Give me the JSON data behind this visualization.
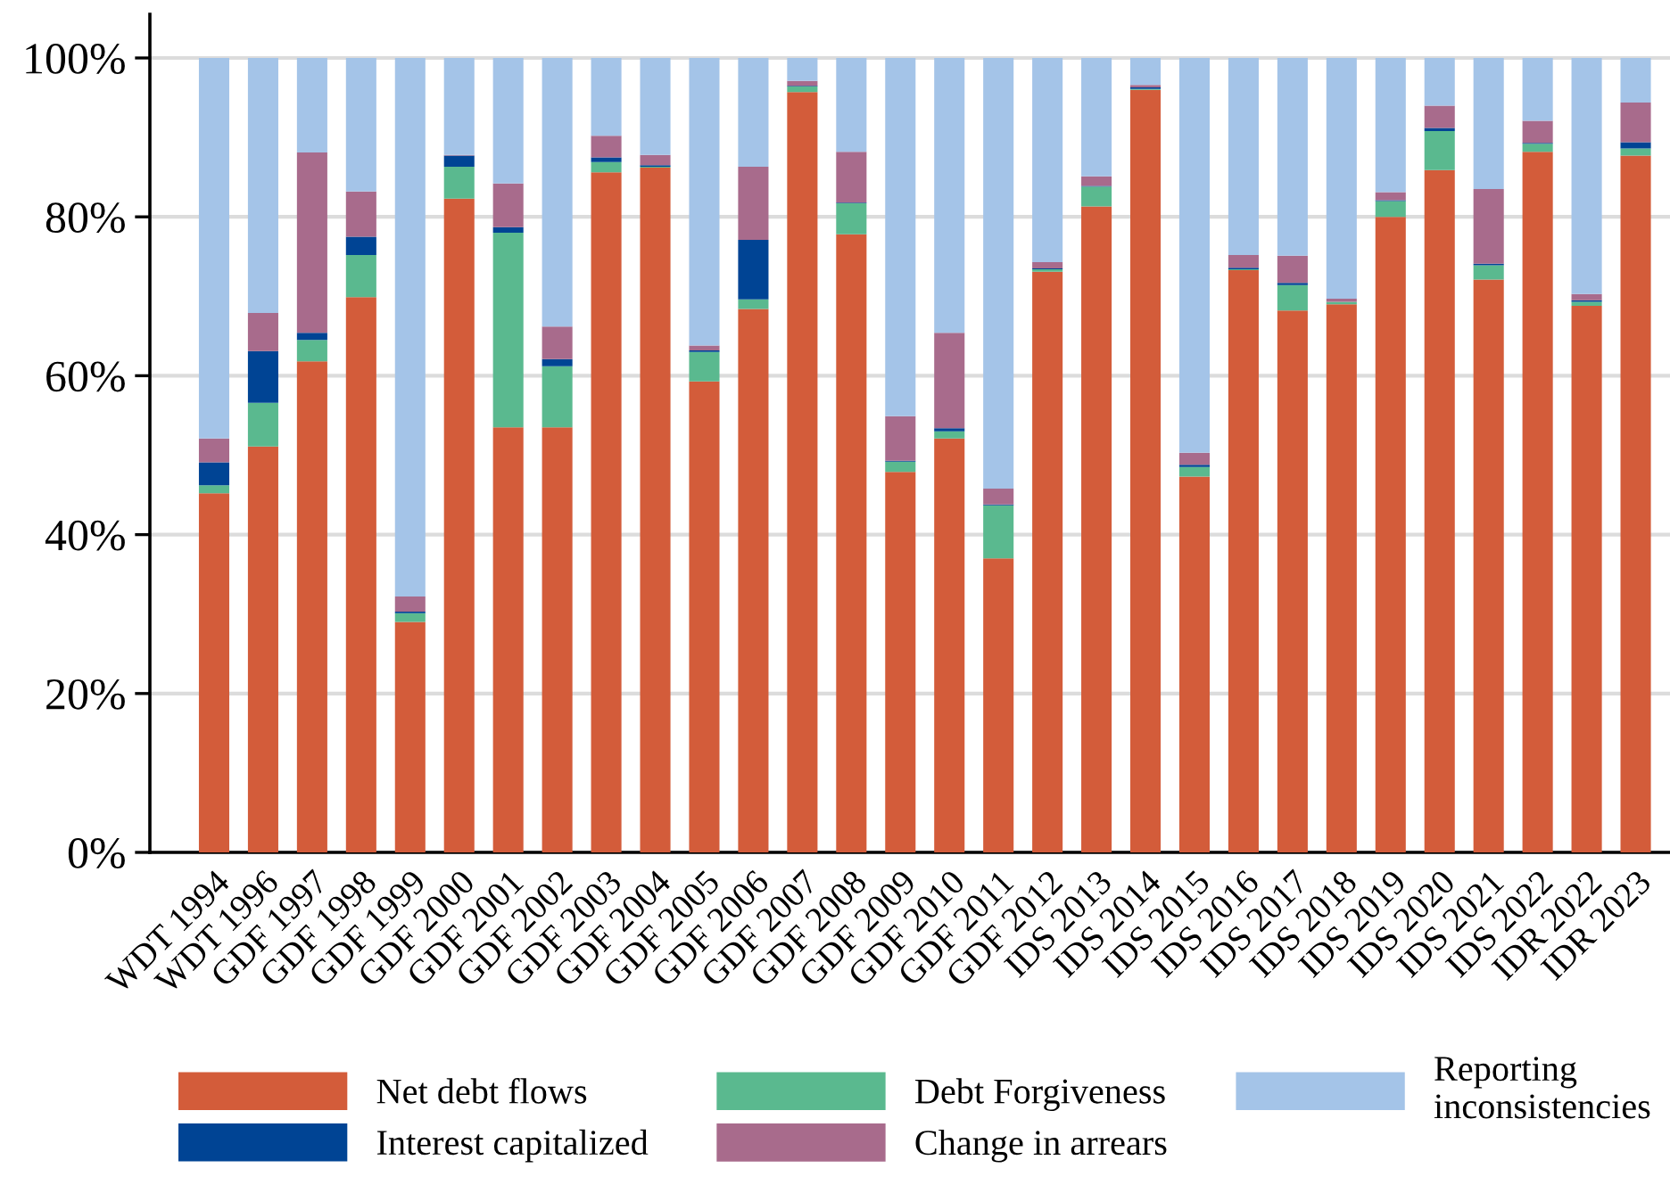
{
  "chart_data": {
    "type": "bar",
    "stacked": true,
    "categories": [
      "WDT 1994",
      "WDT 1996",
      "GDF 1997",
      "GDF 1998",
      "GDF 1999",
      "GDF 2000",
      "GDF 2001",
      "GDF 2002",
      "GDF 2003",
      "GDF 2004",
      "GDF 2005",
      "GDF 2006",
      "GDF 2007",
      "GDF 2008",
      "GDF 2009",
      "GDF 2010",
      "GDF 2011",
      "GDF 2012",
      "IDS 2013",
      "IDS 2014",
      "IDS 2015",
      "IDS 2016",
      "IDS 2017",
      "IDS 2018",
      "IDS 2019",
      "IDS 2020",
      "IDS 2021",
      "IDS 2022",
      "IDR 2022",
      "IDR 2023"
    ],
    "series": [
      {
        "name": "Net debt flows",
        "color": "#d35c3a",
        "values": [
          45.2,
          51.1,
          61.8,
          69.9,
          29.0,
          82.3,
          53.5,
          53.5,
          85.6,
          86.2,
          59.3,
          68.4,
          95.7,
          77.8,
          47.9,
          52.1,
          37.0,
          73.1,
          81.3,
          96.0,
          47.3,
          73.3,
          68.2,
          69.0,
          80.0,
          85.9,
          72.1,
          88.2,
          68.8,
          87.7
        ]
      },
      {
        "name": "Debt Forgiveness",
        "color": "#5ab98f",
        "values": [
          1.0,
          5.5,
          2.7,
          5.3,
          1.1,
          4.0,
          24.5,
          7.7,
          1.3,
          0.1,
          3.7,
          1.2,
          0.7,
          3.9,
          1.3,
          0.9,
          6.7,
          0.3,
          2.5,
          0.1,
          1.2,
          0.1,
          3.2,
          0.3,
          2.0,
          4.9,
          1.8,
          1.0,
          0.5,
          0.9
        ]
      },
      {
        "name": "Interest capitalized",
        "color": "#004494",
        "values": [
          2.9,
          6.5,
          0.9,
          2.3,
          0.2,
          1.4,
          0.7,
          0.9,
          0.6,
          0.2,
          0.2,
          7.5,
          0.1,
          0.1,
          0.1,
          0.4,
          0.1,
          0.1,
          0.1,
          0.2,
          0.3,
          0.2,
          0.3,
          0.0,
          0.1,
          0.4,
          0.2,
          0.1,
          0.2,
          0.8
        ]
      },
      {
        "name": "Change in arrears",
        "color": "#a86b8c",
        "values": [
          3.0,
          4.8,
          22.7,
          5.7,
          1.9,
          0.1,
          5.5,
          4.1,
          2.7,
          1.3,
          0.6,
          9.2,
          0.6,
          6.4,
          5.6,
          12.0,
          2.0,
          0.8,
          1.2,
          0.3,
          1.5,
          1.6,
          3.4,
          0.4,
          1.0,
          2.8,
          9.4,
          2.8,
          0.8,
          5.0
        ]
      },
      {
        "name": "Reporting\ninconsistencies",
        "color": "#a4c4e8",
        "values": [
          47.9,
          32.1,
          11.9,
          16.8,
          67.8,
          12.2,
          15.8,
          33.8,
          9.8,
          12.2,
          36.2,
          13.7,
          2.9,
          11.8,
          45.1,
          34.6,
          54.2,
          25.7,
          14.9,
          3.4,
          49.7,
          24.8,
          24.9,
          30.3,
          16.9,
          6.0,
          16.5,
          7.9,
          29.7,
          5.6
        ]
      }
    ],
    "ylim": [
      0,
      105.5
    ],
    "yticks": [
      {
        "value": 0,
        "label": "0%"
      },
      {
        "value": 20,
        "label": "20%"
      },
      {
        "value": 40,
        "label": "40%"
      },
      {
        "value": 60,
        "label": "60%"
      },
      {
        "value": 80,
        "label": "80%"
      },
      {
        "value": 100,
        "label": "100%"
      }
    ],
    "grid": "y",
    "legend": "bottom"
  }
}
